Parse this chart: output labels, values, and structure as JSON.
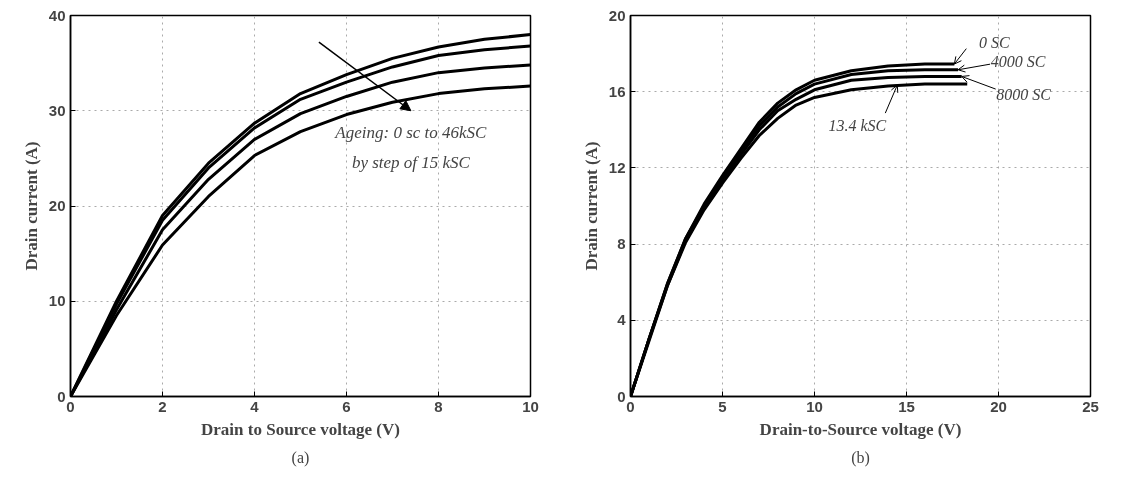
{
  "chart_data": [
    {
      "type": "line",
      "title": "(a)",
      "xlabel": "Drain to Source voltage (V)",
      "ylabel": "Drain current (A)",
      "x": [
        0,
        1,
        2,
        3,
        4,
        5,
        6,
        7,
        8,
        9,
        10
      ],
      "series": [
        {
          "color": "#000000",
          "values": [
            0,
            10,
            19,
            24.5,
            28.7,
            31.8,
            33.8,
            35.5,
            36.7,
            37.5,
            38
          ]
        },
        {
          "color": "#000000",
          "values": [
            0,
            9.7,
            18.5,
            24,
            28.2,
            31.2,
            33,
            34.6,
            35.8,
            36.4,
            36.8
          ]
        },
        {
          "color": "#000000",
          "values": [
            0,
            9.1,
            17.5,
            22.8,
            27,
            29.7,
            31.5,
            33,
            34,
            34.5,
            34.8
          ]
        },
        {
          "color": "#000000",
          "values": [
            0,
            8.5,
            15.9,
            21,
            25.3,
            27.8,
            29.6,
            30.9,
            31.8,
            32.3,
            32.6
          ]
        }
      ],
      "annotations": [
        "Ageing: 0 sc to 46kSC",
        "by step of 15 kSC"
      ],
      "xlim": [
        0,
        10
      ],
      "xticks": [
        0,
        2,
        4,
        6,
        8,
        10
      ],
      "ylim": [
        0,
        40
      ],
      "yticks": [
        0,
        10,
        20,
        30,
        40
      ],
      "grid": true,
      "line_style": "solid",
      "marker": "none"
    },
    {
      "type": "line",
      "title": "(b)",
      "xlabel": "Drain-to-Source voltage (V)",
      "ylabel": "Drain current (A)",
      "series": [
        {
          "color": "#000000",
          "x": [
            0,
            1,
            2,
            3,
            4,
            5,
            6,
            7,
            8,
            9,
            10,
            12,
            14,
            16,
            17.6
          ],
          "values": [
            0,
            3.0,
            5.9,
            8.3,
            10.1,
            11.6,
            13.0,
            14.4,
            15.4,
            16.1,
            16.6,
            17.1,
            17.35,
            17.45,
            17.45
          ]
        },
        {
          "color": "#000000",
          "x": [
            0,
            1,
            2,
            3,
            4,
            5,
            6,
            7,
            8,
            9,
            10,
            12,
            14,
            16,
            17.8
          ],
          "values": [
            0,
            3.0,
            5.9,
            8.3,
            10.0,
            11.5,
            12.9,
            14.2,
            15.2,
            15.9,
            16.4,
            16.9,
            17.1,
            17.15,
            17.15
          ]
        },
        {
          "color": "#000000",
          "x": [
            0,
            1,
            2,
            3,
            4,
            5,
            6,
            7,
            8,
            9,
            10,
            12,
            14,
            16,
            18
          ],
          "values": [
            0,
            3.0,
            5.8,
            8.2,
            9.9,
            11.4,
            12.7,
            14.0,
            15.0,
            15.6,
            16.1,
            16.6,
            16.75,
            16.8,
            16.8
          ]
        },
        {
          "color": "#000000",
          "x": [
            0,
            1,
            2,
            3,
            4,
            5,
            6,
            7,
            8,
            9,
            10,
            12,
            14,
            16,
            18.3
          ],
          "values": [
            0,
            2.9,
            5.8,
            8.1,
            9.8,
            11.2,
            12.5,
            13.7,
            14.6,
            15.3,
            15.7,
            16.1,
            16.3,
            16.4,
            16.4
          ]
        }
      ],
      "annotations": [
        {
          "text": "0 SC",
          "x": 17.6,
          "y": 17.45
        },
        {
          "text": "4000 SC",
          "x": 17.8,
          "y": 17.15
        },
        {
          "text": "8000 SC",
          "x": 18,
          "y": 16.8
        },
        {
          "text": "13.4 kSC",
          "x": 14.5,
          "y": 16.35
        }
      ],
      "xlim": [
        0,
        25
      ],
      "xticks": [
        0,
        5,
        10,
        15,
        20,
        25
      ],
      "ylim": [
        0,
        20
      ],
      "yticks": [
        0,
        4,
        8,
        12,
        16,
        20
      ],
      "grid": true,
      "line_style": "solid",
      "marker": "none"
    }
  ]
}
